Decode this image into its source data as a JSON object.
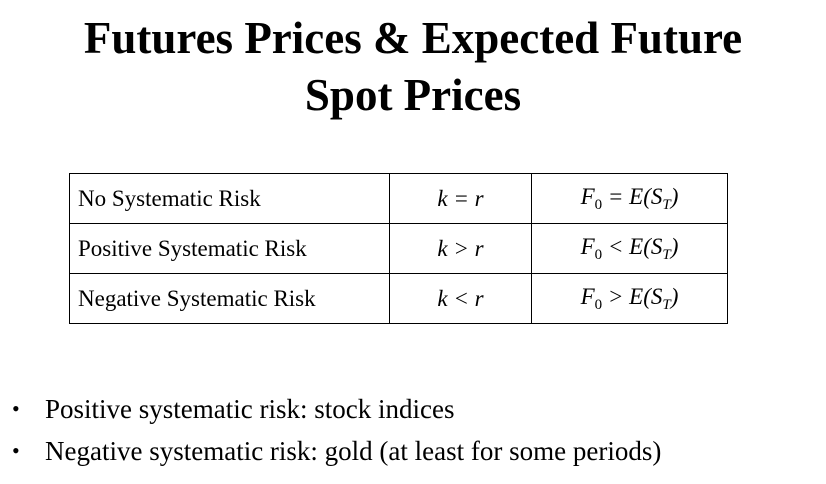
{
  "title": {
    "line1": "Futures Prices & Expected Future",
    "line2": "Spot Prices"
  },
  "table": {
    "rows": [
      {
        "risk": "No Systematic Risk",
        "relation": "k = r",
        "price_lhs": "F",
        "price_sub": "0",
        "price_op": " = E(S",
        "price_rsub": "T",
        "price_close": ")"
      },
      {
        "risk": "Positive Systematic Risk",
        "relation": "k > r",
        "price_lhs": "F",
        "price_sub": "0",
        "price_op": " < E(S",
        "price_rsub": "T",
        "price_close": ")"
      },
      {
        "risk": "Negative Systematic Risk",
        "relation": "k < r",
        "price_lhs": "F",
        "price_sub": "0",
        "price_op": " > E(S",
        "price_rsub": "T",
        "price_close": ")"
      }
    ]
  },
  "bullets": [
    {
      "marker": "•",
      "text": "Positive systematic risk: stock indices"
    },
    {
      "marker": "•",
      "text": "Negative systematic risk: gold (at least for some periods)"
    }
  ]
}
